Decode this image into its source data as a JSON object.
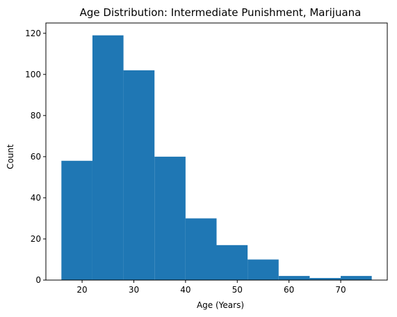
{
  "chart_data": {
    "type": "bar",
    "title": "Age Distribution: Intermediate Punishment, Marijuana",
    "xlabel": "Age (Years)",
    "ylabel": "Count",
    "bin_edges": [
      16,
      22,
      28,
      34,
      40,
      46,
      52,
      58,
      64,
      70,
      76
    ],
    "values": [
      58,
      119,
      102,
      60,
      30,
      17,
      10,
      2,
      1,
      2
    ],
    "xlim": [
      13,
      79
    ],
    "ylim": [
      0,
      125
    ],
    "xticks": [
      20,
      30,
      40,
      50,
      60,
      70
    ],
    "yticks": [
      0,
      20,
      40,
      60,
      80,
      100,
      120
    ],
    "bar_color": "#1f77b4",
    "grid": false,
    "legend": "none"
  }
}
